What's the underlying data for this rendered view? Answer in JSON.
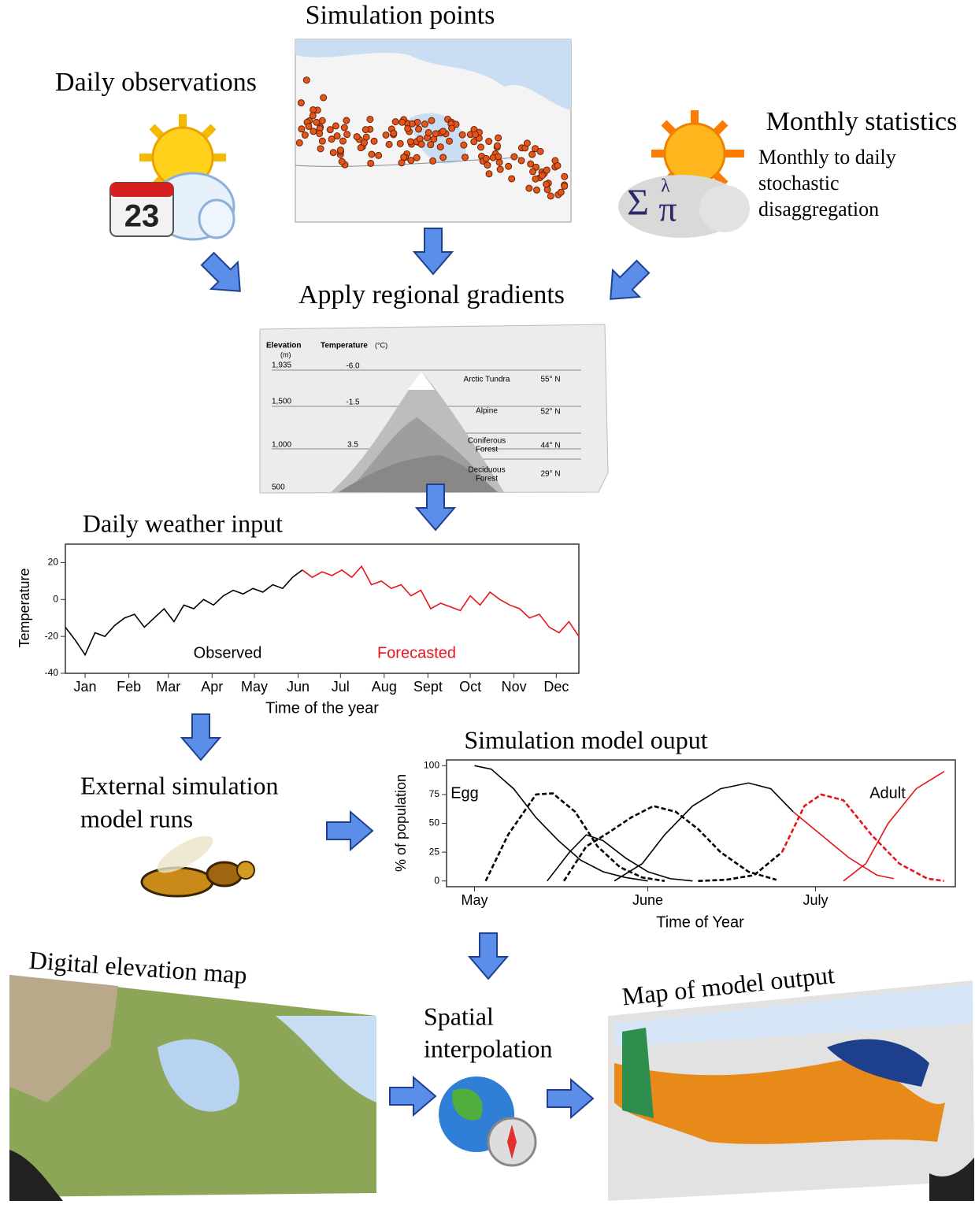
{
  "diagram": {
    "simulation_points": "Simulation points",
    "daily_observations": "Daily observations",
    "calendar_day": "23",
    "monthly_statistics": "Monthly statistics",
    "monthly_note": [
      "Monthly to daily",
      "stochastic",
      "disaggregation"
    ],
    "stats_symbols": [
      "Σ",
      "λ",
      "π"
    ],
    "apply_gradients": "Apply regional gradients",
    "elevation": {
      "elevation_header": "Elevation",
      "elevation_unit": "(m)",
      "temperature_header": "Temperature",
      "temperature_unit": "(°C)",
      "elevations": [
        "1,935",
        "1,500",
        "1,000",
        "500"
      ],
      "temperatures": [
        "-6.0",
        "-1.5",
        "3.5"
      ],
      "zones": [
        [
          "Arctic Tundra"
        ],
        [
          "Alpine"
        ],
        [
          "Coniferous",
          "Forest"
        ],
        [
          "Deciduous",
          "Forest"
        ]
      ],
      "latitudes": [
        "55° N",
        "52° N",
        "44° N",
        "29° N"
      ]
    },
    "daily_weather_input": "Daily weather input",
    "external_runs": [
      "External simulation",
      "model runs"
    ],
    "simulation_output": "Simulation model ouput",
    "digital_elevation_map": "Digital elevation map",
    "spatial_interpolation": [
      "Spatial",
      "interpolation"
    ],
    "map_output": "Map of model output"
  },
  "chart_data": [
    {
      "type": "line",
      "x_label": "Time of the year",
      "y_label": "Temperature",
      "xlim": [
        1,
        365
      ],
      "ylim": [
        -40,
        30
      ],
      "xticks": [
        {
          "value": 15,
          "label": "Jan"
        },
        {
          "value": 46,
          "label": "Feb"
        },
        {
          "value": 74,
          "label": "Mar"
        },
        {
          "value": 105,
          "label": "Apr"
        },
        {
          "value": 135,
          "label": "May"
        },
        {
          "value": 166,
          "label": "Jun"
        },
        {
          "value": 196,
          "label": "Jul"
        },
        {
          "value": 227,
          "label": "Aug"
        },
        {
          "value": 258,
          "label": "Sept"
        },
        {
          "value": 288,
          "label": "Oct"
        },
        {
          "value": 319,
          "label": "Nov"
        },
        {
          "value": 349,
          "label": "Dec"
        }
      ],
      "yticks": [
        -40,
        -20,
        0,
        20
      ],
      "annotations": [
        {
          "text": "Observed",
          "color": "#000000"
        },
        {
          "text": "Forecasted",
          "color": "#e8141c"
        }
      ],
      "series": [
        {
          "color": "#000000",
          "dash": false,
          "x": [
            1,
            8,
            15,
            22,
            29,
            36,
            43,
            50,
            57,
            64,
            71,
            78,
            85,
            92,
            99,
            106,
            113,
            120,
            127,
            134,
            141,
            148,
            155,
            162,
            169
          ],
          "values": [
            -15,
            -22,
            -30,
            -18,
            -20,
            -14,
            -10,
            -8,
            -15,
            -10,
            -5,
            -12,
            -3,
            -5,
            0,
            -3,
            2,
            5,
            3,
            6,
            4,
            8,
            6,
            12,
            16
          ]
        },
        {
          "color": "#e8141c",
          "dash": false,
          "x": [
            169,
            176,
            183,
            190,
            197,
            204,
            211,
            218,
            225,
            232,
            239,
            246,
            253,
            260,
            267,
            274,
            281,
            288,
            295,
            302,
            309,
            316,
            323,
            330,
            337,
            344,
            351,
            358,
            365
          ],
          "values": [
            16,
            12,
            15,
            13,
            16,
            12,
            18,
            8,
            10,
            6,
            8,
            2,
            5,
            -5,
            -2,
            -4,
            -6,
            2,
            -3,
            4,
            0,
            -3,
            -5,
            -10,
            -8,
            -15,
            -18,
            -12,
            -20
          ]
        }
      ]
    },
    {
      "type": "line",
      "x_label": "Time of Year",
      "y_label": "% of population",
      "xlim": [
        116,
        207
      ],
      "ylim": [
        -5,
        105
      ],
      "xticks": [
        {
          "value": 121,
          "label": "May"
        },
        {
          "value": 152,
          "label": "June"
        },
        {
          "value": 182,
          "label": "July"
        }
      ],
      "yticks": [
        0,
        25,
        50,
        75,
        100
      ],
      "annotations": [
        {
          "text": "Egg",
          "color": "#000000"
        },
        {
          "text": "Adult",
          "color": "#000000"
        }
      ],
      "series": [
        {
          "color": "#000000",
          "dash": false,
          "x": [
            121,
            124,
            128,
            132,
            136,
            140,
            144,
            148,
            152
          ],
          "values": [
            100,
            97,
            80,
            55,
            35,
            18,
            8,
            3,
            0
          ]
        },
        {
          "color": "#000000",
          "dash": true,
          "x": [
            123,
            127,
            132,
            135,
            139,
            143,
            147,
            151,
            155
          ],
          "values": [
            0,
            40,
            75,
            76,
            60,
            30,
            12,
            3,
            0
          ]
        },
        {
          "color": "#000000",
          "dash": false,
          "x": [
            134,
            138,
            141,
            144,
            148,
            152,
            156,
            160
          ],
          "values": [
            0,
            25,
            40,
            35,
            20,
            8,
            2,
            0
          ]
        },
        {
          "color": "#000000",
          "dash": true,
          "x": [
            137,
            141,
            145,
            149,
            153,
            157,
            161,
            165,
            170,
            175
          ],
          "values": [
            0,
            30,
            42,
            55,
            65,
            60,
            45,
            25,
            8,
            1
          ]
        },
        {
          "color": "#000000",
          "dash": false,
          "x": [
            146,
            151,
            155,
            160,
            165,
            170,
            174,
            178
          ],
          "values": [
            0,
            15,
            40,
            65,
            80,
            85,
            80,
            60
          ]
        },
        {
          "color": "#e8141c",
          "dash": false,
          "x": [
            178,
            183,
            188,
            193,
            196
          ],
          "values": [
            60,
            40,
            20,
            5,
            2
          ]
        },
        {
          "color": "#000000",
          "dash": true,
          "x": [
            161,
            166,
            171,
            176
          ],
          "values": [
            0,
            1,
            5,
            25
          ]
        },
        {
          "color": "#e8141c",
          "dash": true,
          "x": [
            176,
            180,
            183,
            187,
            192,
            197,
            202,
            205
          ],
          "values": [
            25,
            65,
            75,
            70,
            40,
            15,
            2,
            0
          ]
        },
        {
          "color": "#e8141c",
          "dash": false,
          "x": [
            187,
            191,
            195,
            200,
            205
          ],
          "values": [
            0,
            15,
            50,
            80,
            95
          ]
        }
      ]
    }
  ]
}
